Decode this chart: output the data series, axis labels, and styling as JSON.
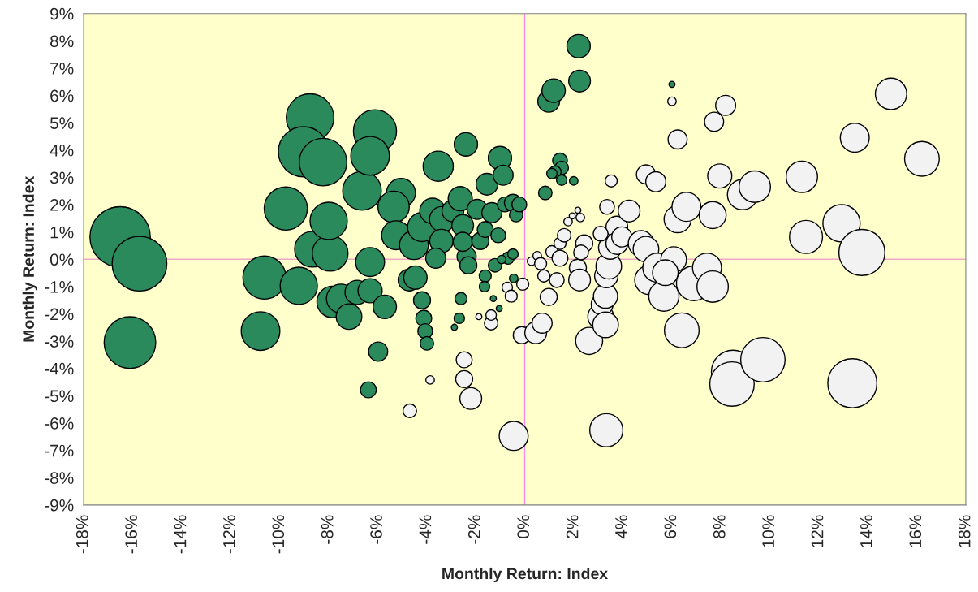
{
  "chart_data": {
    "type": "bubble",
    "xlabel": "Monthly Return: Index",
    "ylabel": "Monthly Return: Index",
    "xlim": [
      -18,
      18
    ],
    "ylim": [
      -9,
      9
    ],
    "xticks": [
      {
        "value": -18,
        "label": "-18%"
      },
      {
        "value": -16,
        "label": "-16%"
      },
      {
        "value": -14,
        "label": "-14%"
      },
      {
        "value": -12,
        "label": "-12%"
      },
      {
        "value": -10,
        "label": "-10%"
      },
      {
        "value": -8,
        "label": "-8%"
      },
      {
        "value": -6,
        "label": "-6%"
      },
      {
        "value": -4,
        "label": "-4%"
      },
      {
        "value": -2,
        "label": "-2%"
      },
      {
        "value": 0,
        "label": "0%"
      },
      {
        "value": 2,
        "label": "2%"
      },
      {
        "value": 4,
        "label": "4%"
      },
      {
        "value": 6,
        "label": "6%"
      },
      {
        "value": 8,
        "label": "8%"
      },
      {
        "value": 10,
        "label": "10%"
      },
      {
        "value": 12,
        "label": "12%"
      },
      {
        "value": 14,
        "label": "14%"
      },
      {
        "value": 16,
        "label": "16%"
      },
      {
        "value": 18,
        "label": "18%"
      }
    ],
    "yticks": [
      {
        "value": -9,
        "label": "-9%"
      },
      {
        "value": -8,
        "label": "-8%"
      },
      {
        "value": -7,
        "label": "-7%"
      },
      {
        "value": -6,
        "label": "-6%"
      },
      {
        "value": -5,
        "label": "-5%"
      },
      {
        "value": -4,
        "label": "-4%"
      },
      {
        "value": -3,
        "label": "-3%"
      },
      {
        "value": -2,
        "label": "-2%"
      },
      {
        "value": -1,
        "label": "-1%"
      },
      {
        "value": 0,
        "label": "0%"
      },
      {
        "value": 1,
        "label": "1%"
      },
      {
        "value": 2,
        "label": "2%"
      },
      {
        "value": 3,
        "label": "3%"
      },
      {
        "value": 4,
        "label": "4%"
      },
      {
        "value": 5,
        "label": "5%"
      },
      {
        "value": 6,
        "label": "6%"
      },
      {
        "value": 7,
        "label": "7%"
      },
      {
        "value": 8,
        "label": "8%"
      },
      {
        "value": 9,
        "label": "9%"
      }
    ],
    "grid": false,
    "legend": false,
    "ref_lines": [
      {
        "axis": "x",
        "value": 0,
        "color": "#ff88ee"
      },
      {
        "axis": "y",
        "value": 0,
        "color": "#f0a8c8"
      }
    ],
    "series": [
      {
        "color": "#2a8a5c",
        "x": [
          -16.51,
          -15.72,
          -16.11,
          -10.62,
          -10.78,
          -9.22,
          -9.75,
          -8.76,
          -9.03,
          -8.23,
          -8.66,
          -7.94,
          -8.0,
          -7.84,
          -7.5,
          -7.17,
          -6.84,
          -6.64,
          -6.11,
          -6.31,
          -6.31,
          -6.31,
          -5.71,
          -5.98,
          -6.38,
          -5.05,
          -5.35,
          -5.25,
          -4.52,
          -4.72,
          -4.46,
          -4.19,
          -4.12,
          -4.06,
          -3.99,
          -4.19,
          -3.53,
          -3.76,
          -3.36,
          -3.4,
          -3.63,
          -2.93,
          -2.63,
          -2.53,
          -2.4,
          -2.37,
          -2.3,
          -2.53,
          -2.6,
          -2.67,
          -2.87,
          -1.94,
          -1.81,
          -1.54,
          -1.34,
          -1.61,
          -1.61,
          -1.64,
          -1.21,
          -1.08,
          -1.01,
          -0.88,
          -0.81,
          -0.48,
          -0.35,
          -0.68,
          -0.45,
          -1.04,
          -1.28,
          -0.22,
          -0.48,
          -0.94,
          0.98,
          1.18,
          2.24,
          2.2,
          1.44,
          1.51,
          1.24,
          1.11,
          0.84,
          2.0,
          6.01,
          1.51
        ],
        "values": [
          0.82,
          -0.16,
          -3.05,
          -0.67,
          -2.63,
          -0.97,
          1.86,
          5.19,
          3.94,
          3.56,
          0.37,
          0.22,
          1.41,
          -1.56,
          -1.44,
          -2.1,
          -1.21,
          2.51,
          4.69,
          3.79,
          -0.1,
          -1.15,
          -1.74,
          -3.38,
          -4.78,
          2.43,
          1.92,
          0.88,
          0.52,
          -0.76,
          -0.67,
          -1.5,
          -2.16,
          -2.63,
          -3.08,
          1.18,
          3.41,
          1.77,
          1.47,
          0.67,
          0.04,
          1.77,
          2.22,
          1.24,
          4.21,
          0.1,
          -0.22,
          0.64,
          -1.44,
          -2.16,
          -2.49,
          1.83,
          0.67,
          2.75,
          1.71,
          1.09,
          -0.61,
          -1.0,
          -0.22,
          0.88,
          3.71,
          3.08,
          2.01,
          2.07,
          1.62,
          0.04,
          -0.7,
          -1.8,
          -1.44,
          2.01,
          0.19,
          -0.01,
          5.79,
          6.18,
          6.53,
          7.81,
          3.62,
          3.35,
          3.2,
          3.14,
          2.43,
          2.87,
          6.41,
          2.9
        ],
        "sizes": [
          1.0,
          0.82,
          0.73,
          0.51,
          0.41,
          0.38,
          0.51,
          0.62,
          0.69,
          0.62,
          0.35,
          0.35,
          0.38,
          0.27,
          0.23,
          0.18,
          0.16,
          0.41,
          0.51,
          0.41,
          0.23,
          0.16,
          0.15,
          0.1,
          0.07,
          0.23,
          0.27,
          0.23,
          0.23,
          0.13,
          0.15,
          0.08,
          0.07,
          0.06,
          0.05,
          0.23,
          0.25,
          0.18,
          0.18,
          0.15,
          0.11,
          0.13,
          0.16,
          0.13,
          0.15,
          0.1,
          0.08,
          0.1,
          0.04,
          0.03,
          0.01,
          0.11,
          0.08,
          0.13,
          0.11,
          0.07,
          0.04,
          0.03,
          0.05,
          0.06,
          0.15,
          0.11,
          0.06,
          0.08,
          0.05,
          0.04,
          0.02,
          0.01,
          0.01,
          0.06,
          0.03,
          0.02,
          0.13,
          0.15,
          0.13,
          0.15,
          0.06,
          0.05,
          0.04,
          0.03,
          0.05,
          0.02,
          0.01,
          0.03
        ]
      },
      {
        "color": "#f2f2f2",
        "x": [
          -0.71,
          -0.08,
          -0.55,
          -0.12,
          0.45,
          0.71,
          -0.45,
          -2.47,
          -2.47,
          -2.2,
          -4.69,
          -3.86,
          -1.37,
          -1.37,
          -1.87,
          0.28,
          0.51,
          0.65,
          0.78,
          0.98,
          1.31,
          1.11,
          1.44,
          1.61,
          1.77,
          1.94,
          2.17,
          2.27,
          2.43,
          2.17,
          2.24,
          2.63,
          3.1,
          3.16,
          3.3,
          3.3,
          3.33,
          3.43,
          3.49,
          3.76,
          3.36,
          3.1,
          3.76,
          4.26,
          3.96,
          3.53,
          3.33,
          4.75,
          4.95,
          5.35,
          4.95,
          5.08,
          5.41,
          5.68,
          6.08,
          6.41,
          6.24,
          6.6,
          5.74,
          6.9,
          7.44,
          7.67,
          7.67,
          7.96,
          8.5,
          8.89,
          8.46,
          9.39,
          9.72,
          11.31,
          11.48,
          12.93,
          13.37,
          13.76,
          13.47,
          14.95,
          16.21,
          6.24,
          7.73,
          8.2,
          6.01,
          1.44,
          2.3
        ],
        "values": [
          -1.03,
          -0.91,
          -1.35,
          -2.78,
          -2.69,
          -2.34,
          -6.47,
          -3.68,
          -4.39,
          -5.1,
          -5.55,
          -4.42,
          -2.34,
          -2.04,
          -2.1,
          -0.07,
          0.13,
          -0.16,
          -0.61,
          -1.38,
          -0.76,
          0.28,
          0.58,
          0.88,
          1.38,
          1.59,
          1.8,
          1.53,
          0.58,
          -0.31,
          -0.76,
          -2.99,
          -2.1,
          -1.65,
          -1.35,
          -2.4,
          -0.61,
          -0.25,
          0.43,
          1.18,
          1.92,
          0.94,
          0.58,
          1.77,
          0.82,
          2.87,
          -6.26,
          0.58,
          3.11,
          2.84,
          0.37,
          -0.76,
          -0.31,
          -1.35,
          -0.01,
          -2.6,
          1.47,
          1.92,
          -0.49,
          -0.88,
          -0.31,
          -1.0,
          1.62,
          3.05,
          -4.12,
          2.37,
          -4.57,
          2.66,
          -3.68,
          3.02,
          0.82,
          1.32,
          -4.54,
          0.25,
          4.45,
          6.06,
          3.68,
          4.39,
          5.04,
          5.64,
          5.79,
          0.04,
          0.25
        ],
        "sizes": [
          0.03,
          0.04,
          0.04,
          0.08,
          0.13,
          0.11,
          0.23,
          0.07,
          0.08,
          0.13,
          0.05,
          0.02,
          0.05,
          0.03,
          0.01,
          0.02,
          0.02,
          0.04,
          0.04,
          0.08,
          0.06,
          0.04,
          0.04,
          0.05,
          0.02,
          0.01,
          0.01,
          0.02,
          0.08,
          0.08,
          0.13,
          0.2,
          0.18,
          0.13,
          0.16,
          0.18,
          0.15,
          0.18,
          0.15,
          0.13,
          0.06,
          0.06,
          0.13,
          0.13,
          0.11,
          0.04,
          0.3,
          0.18,
          0.1,
          0.11,
          0.18,
          0.23,
          0.23,
          0.25,
          0.18,
          0.33,
          0.2,
          0.23,
          0.18,
          0.33,
          0.23,
          0.27,
          0.2,
          0.16,
          0.51,
          0.25,
          0.54,
          0.27,
          0.54,
          0.27,
          0.3,
          0.38,
          0.66,
          0.58,
          0.23,
          0.27,
          0.33,
          0.1,
          0.1,
          0.11,
          0.02,
          0.07,
          0.06
        ]
      }
    ]
  }
}
